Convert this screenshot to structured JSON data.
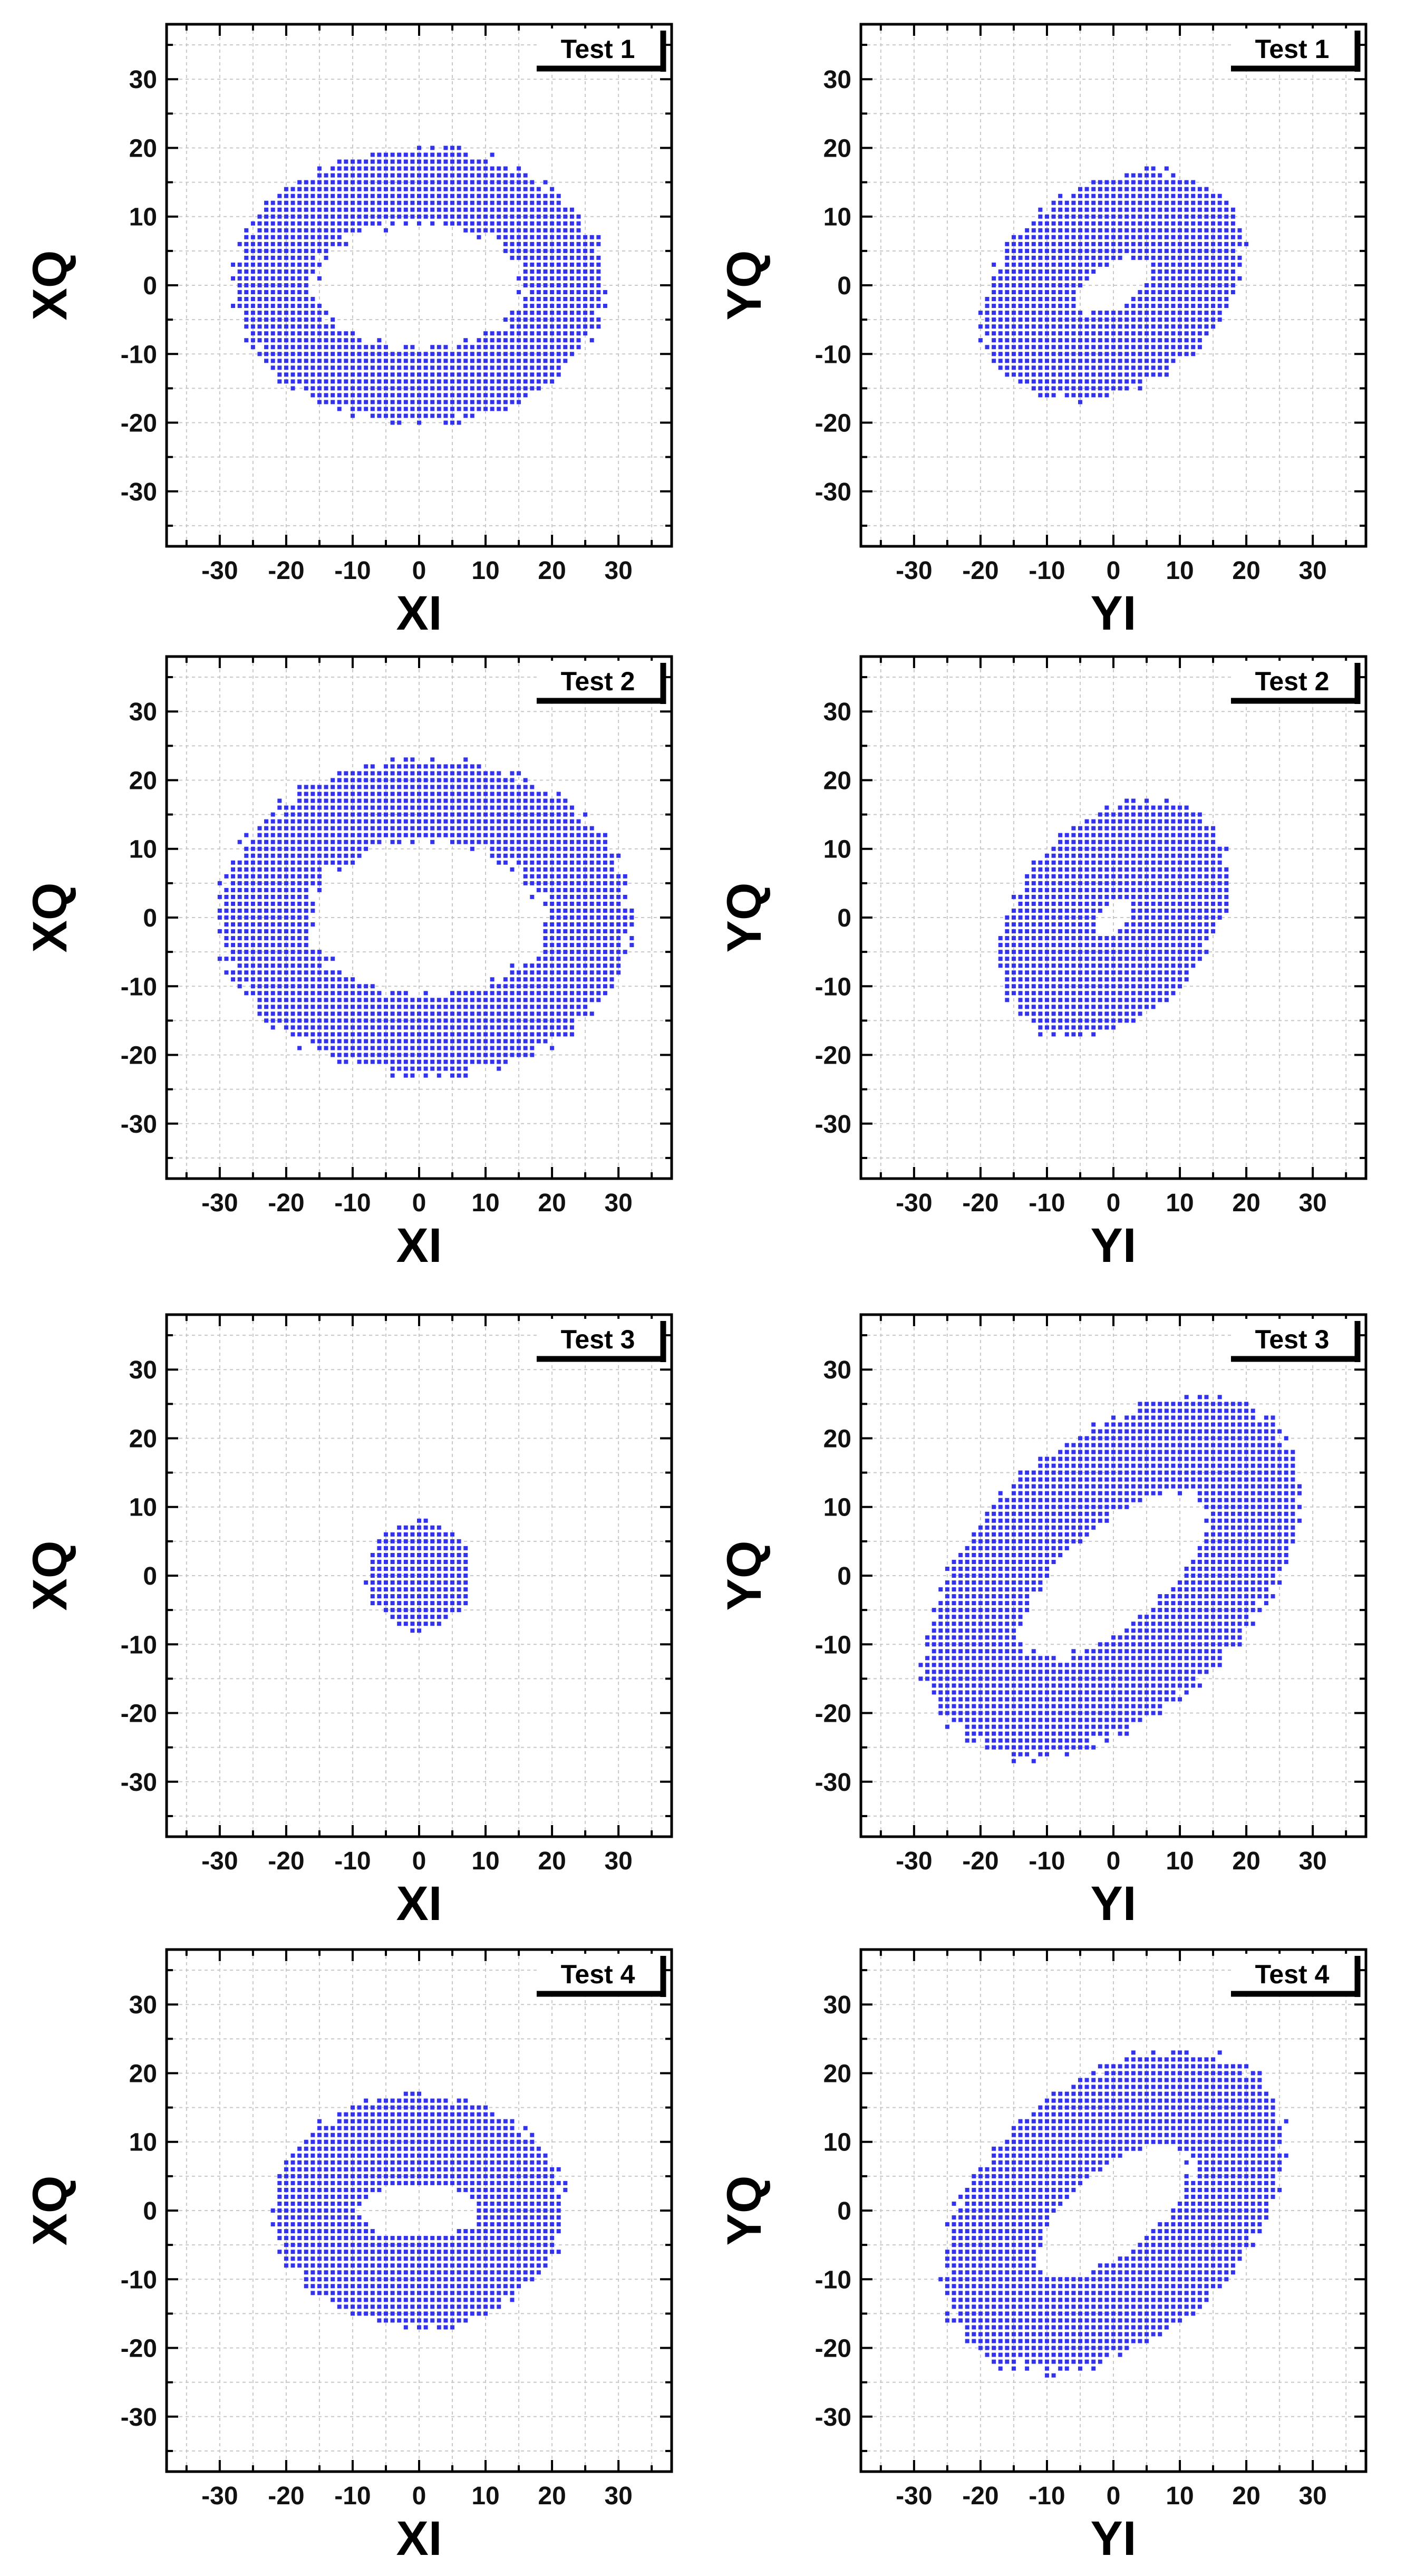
{
  "colors": {
    "point": "#3333ee",
    "frame": "#000000",
    "grid": "#c8c8c8",
    "background": "#ffffff"
  },
  "chart_data": [
    {
      "type": "scatter",
      "title": "Test 1",
      "xlabel": "XI",
      "ylabel": "XQ",
      "xlim": [
        -38,
        38
      ],
      "ylim": [
        -38,
        38
      ],
      "xticks": [
        "-30",
        "-20",
        "-10",
        "0",
        "10",
        "20",
        "30"
      ],
      "yticks": [
        "-30",
        "-20",
        "-10",
        "0",
        "10",
        "20",
        "30"
      ],
      "grid": true,
      "label_position": "top-right",
      "cloud": {
        "shape": "annulus",
        "center": [
          0,
          0
        ],
        "outer_radii": [
          28,
          20
        ],
        "inner_radii": [
          16,
          9
        ],
        "tilt_deg": 0,
        "step": 1
      }
    },
    {
      "type": "scatter",
      "title": "Test 1",
      "xlabel": "YI",
      "ylabel": "YQ",
      "xlim": [
        -38,
        38
      ],
      "ylim": [
        -38,
        38
      ],
      "xticks": [
        "-30",
        "-20",
        "-10",
        "0",
        "10",
        "20",
        "30"
      ],
      "yticks": [
        "-30",
        "-20",
        "-10",
        "0",
        "10",
        "20",
        "30"
      ],
      "grid": true,
      "label_position": "top-right",
      "cloud": {
        "shape": "annulus",
        "center": [
          0,
          0
        ],
        "outer_radii": [
          21,
          15
        ],
        "inner_radii": [
          6,
          3
        ],
        "tilt_deg": 30,
        "step": 1
      }
    },
    {
      "type": "scatter",
      "title": "Test 2",
      "xlabel": "XI",
      "ylabel": "XQ",
      "xlim": [
        -38,
        38
      ],
      "ylim": [
        -38,
        38
      ],
      "xticks": [
        "-30",
        "-20",
        "-10",
        "0",
        "10",
        "20",
        "30"
      ],
      "yticks": [
        "-30",
        "-20",
        "-10",
        "0",
        "10",
        "20",
        "30"
      ],
      "grid": true,
      "label_position": "top-right",
      "cloud": {
        "shape": "annulus",
        "center": [
          1,
          0
        ],
        "outer_radii": [
          31,
          23
        ],
        "inner_radii": [
          18,
          11
        ],
        "tilt_deg": 0,
        "step": 1
      }
    },
    {
      "type": "scatter",
      "title": "Test 2",
      "xlabel": "YI",
      "ylabel": "YQ",
      "xlim": [
        -38,
        38
      ],
      "ylim": [
        -38,
        38
      ],
      "xticks": [
        "-30",
        "-20",
        "-10",
        "0",
        "10",
        "20",
        "30"
      ],
      "yticks": [
        "-30",
        "-20",
        "-10",
        "0",
        "10",
        "20",
        "30"
      ],
      "grid": true,
      "label_position": "top-right",
      "cloud": {
        "shape": "annulus",
        "center": [
          0,
          0
        ],
        "outer_radii": [
          20,
          14
        ],
        "inner_radii": [
          3,
          2
        ],
        "tilt_deg": 45,
        "step": 1
      }
    },
    {
      "type": "scatter",
      "title": "Test 3",
      "xlabel": "XI",
      "ylabel": "XQ",
      "xlim": [
        -38,
        38
      ],
      "ylim": [
        -38,
        38
      ],
      "xticks": [
        "-30",
        "-20",
        "-10",
        "0",
        "10",
        "20",
        "30"
      ],
      "yticks": [
        "-30",
        "-20",
        "-10",
        "0",
        "10",
        "20",
        "30"
      ],
      "grid": true,
      "label_position": "top-right",
      "cloud": {
        "shape": "disk",
        "center": [
          0,
          0
        ],
        "outer_radii": [
          8,
          8
        ],
        "inner_radii": [
          0,
          0
        ],
        "tilt_deg": 0,
        "step": 1
      }
    },
    {
      "type": "scatter",
      "title": "Test 3",
      "xlabel": "YI",
      "ylabel": "YQ",
      "xlim": [
        -38,
        38
      ],
      "ylim": [
        -38,
        38
      ],
      "xticks": [
        "-30",
        "-20",
        "-10",
        "0",
        "10",
        "20",
        "30"
      ],
      "yticks": [
        "-30",
        "-20",
        "-10",
        "0",
        "10",
        "20",
        "30"
      ],
      "grid": true,
      "label_position": "top-right",
      "cloud": {
        "shape": "annulus",
        "center": [
          0,
          0
        ],
        "outer_radii": [
          33,
          20
        ],
        "inner_radii": [
          17,
          7
        ],
        "tilt_deg": 40,
        "step": 1
      }
    },
    {
      "type": "scatter",
      "title": "Test 4",
      "xlabel": "XI",
      "ylabel": "XQ",
      "xlim": [
        -38,
        38
      ],
      "ylim": [
        -38,
        38
      ],
      "xticks": [
        "-30",
        "-20",
        "-10",
        "0",
        "10",
        "20",
        "30"
      ],
      "yticks": [
        "-30",
        "-20",
        "-10",
        "0",
        "10",
        "20",
        "30"
      ],
      "grid": true,
      "label_position": "top-right",
      "cloud": {
        "shape": "annulus",
        "center": [
          0,
          0
        ],
        "outer_radii": [
          22,
          17
        ],
        "inner_radii": [
          9,
          4
        ],
        "tilt_deg": 0,
        "step": 1
      }
    },
    {
      "type": "scatter",
      "title": "Test 4",
      "xlabel": "YI",
      "ylabel": "YQ",
      "xlim": [
        -38,
        38
      ],
      "ylim": [
        -38,
        38
      ],
      "xticks": [
        "-30",
        "-20",
        "-10",
        "0",
        "10",
        "20",
        "30"
      ],
      "yticks": [
        "-30",
        "-20",
        "-10",
        "0",
        "10",
        "20",
        "30"
      ],
      "grid": true,
      "label_position": "top-right",
      "cloud": {
        "shape": "annulus",
        "center": [
          0,
          0
        ],
        "outer_radii": [
          29,
          19
        ],
        "inner_radii": [
          14,
          6
        ],
        "tilt_deg": 38,
        "step": 1
      }
    }
  ]
}
